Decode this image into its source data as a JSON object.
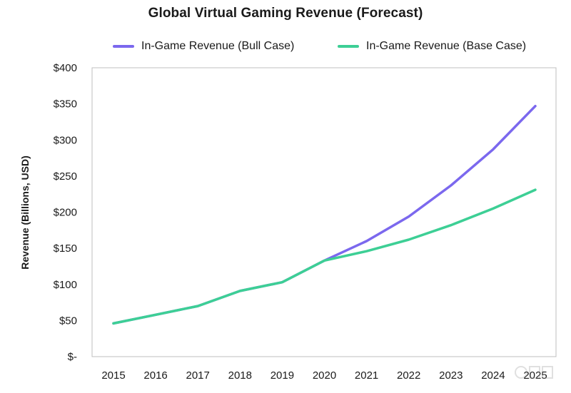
{
  "chart_data": {
    "type": "line",
    "title": "Global Virtual Gaming Revenue (Forecast)",
    "xlabel": "",
    "ylabel": "Revenue (Billions, USD)",
    "x": [
      "2015",
      "2016",
      "2017",
      "2018",
      "2019",
      "2020",
      "2021",
      "2022",
      "2023",
      "2024",
      "2025"
    ],
    "y_ticks": [
      "$-",
      "$50",
      "$100",
      "$150",
      "$200",
      "$250",
      "$300",
      "$350",
      "$400"
    ],
    "ylim": [
      0,
      400
    ],
    "grid": false,
    "legend_position": "top",
    "series": [
      {
        "name": "In-Game Revenue (Bull Case)",
        "color": "#7b68ee",
        "values": [
          46,
          58,
          70,
          91,
          103,
          133,
          160,
          194,
          237,
          287,
          347
        ]
      },
      {
        "name": "In-Game Revenue (Base Case)",
        "color": "#3dcf95",
        "values": [
          46,
          58,
          70,
          91,
          103,
          133,
          146,
          162,
          182,
          205,
          231
        ]
      }
    ]
  }
}
